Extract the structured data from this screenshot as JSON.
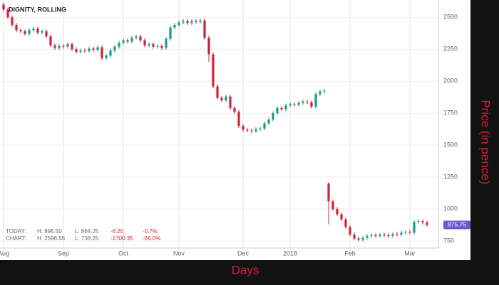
{
  "chart_data": {
    "type": "candlestick",
    "title": "DIGNITY, ROLLING",
    "x_label": "Days",
    "y_label": "Price (in pence)",
    "categories": [
      "Aug",
      null,
      null,
      null,
      null,
      null,
      null,
      null,
      null,
      null,
      null,
      null,
      null,
      null,
      "Sep",
      null,
      null,
      null,
      null,
      null,
      null,
      null,
      null,
      null,
      null,
      null,
      null,
      null,
      "Oct",
      null,
      null,
      null,
      null,
      null,
      null,
      null,
      null,
      null,
      null,
      null,
      null,
      "Nov",
      null,
      null,
      null,
      null,
      null,
      null,
      null,
      null,
      null,
      null,
      null,
      null,
      null,
      null,
      "Dec",
      null,
      null,
      null,
      null,
      null,
      null,
      null,
      null,
      null,
      null,
      "2018",
      null,
      null,
      null,
      null,
      null,
      null,
      null,
      null,
      null,
      null,
      null,
      null,
      null,
      "Feb",
      null,
      null,
      null,
      null,
      null,
      null,
      null,
      null,
      null,
      null,
      null,
      null,
      null,
      "Mar",
      null,
      null,
      null,
      null
    ],
    "series": [
      {
        "up_color": "#1a9a8a",
        "down_color": "#d0213b",
        "open": [
          2600,
          2560,
          2500,
          2440,
          2400,
          2390,
          2370,
          2400,
          2410,
          2380,
          2390,
          2350,
          2280,
          2260,
          2275,
          2270,
          2290,
          2250,
          2230,
          2240,
          2235,
          2255,
          2245,
          2265,
          2180,
          2200,
          2240,
          2270,
          2300,
          2320,
          2310,
          2340,
          2350,
          2320,
          2280,
          2290,
          2270,
          2275,
          2260,
          2330,
          2420,
          2440,
          2460,
          2470,
          2455,
          2470,
          2465,
          2475,
          2340,
          2210,
          1960,
          1870,
          1850,
          1880,
          1790,
          1760,
          1650,
          1620,
          1615,
          1610,
          1625,
          1630,
          1670,
          1700,
          1750,
          1790,
          1780,
          1810,
          1820,
          1815,
          1830,
          1840,
          1835,
          1800,
          1900,
          1920,
          1200,
          1060,
          1000,
          960,
          920,
          860,
          800,
          770,
          760,
          775,
          790,
          795,
          790,
          800,
          795,
          790,
          805,
          800,
          815,
          820,
          815,
          900,
          905,
          895
        ],
        "high": [
          2615,
          2575,
          2515,
          2455,
          2415,
          2405,
          2415,
          2425,
          2425,
          2405,
          2405,
          2365,
          2295,
          2290,
          2290,
          2305,
          2305,
          2265,
          2255,
          2255,
          2270,
          2270,
          2280,
          2280,
          2215,
          2255,
          2285,
          2315,
          2335,
          2335,
          2355,
          2365,
          2365,
          2335,
          2305,
          2305,
          2290,
          2290,
          2345,
          2435,
          2455,
          2475,
          2485,
          2485,
          2485,
          2485,
          2490,
          2490,
          2355,
          2225,
          1975,
          1885,
          1895,
          1895,
          1805,
          1775,
          1665,
          1635,
          1630,
          1640,
          1645,
          1685,
          1715,
          1765,
          1805,
          1805,
          1825,
          1835,
          1835,
          1845,
          1855,
          1855,
          1850,
          1915,
          1935,
          1940,
          1210,
          1075,
          1015,
          975,
          935,
          875,
          815,
          785,
          790,
          805,
          810,
          810,
          815,
          815,
          810,
          820,
          820,
          830,
          835,
          835,
          915,
          920,
          920,
          910
        ],
        "low": [
          2545,
          2485,
          2425,
          2385,
          2375,
          2355,
          2355,
          2385,
          2365,
          2365,
          2335,
          2265,
          2245,
          2245,
          2255,
          2255,
          2235,
          2215,
          2215,
          2220,
          2220,
          2230,
          2230,
          2165,
          2165,
          2185,
          2225,
          2255,
          2285,
          2295,
          2295,
          2325,
          2305,
          2265,
          2265,
          2255,
          2255,
          2245,
          2245,
          2315,
          2405,
          2425,
          2445,
          2440,
          2440,
          2450,
          2450,
          2325,
          2150,
          1945,
          1855,
          1835,
          1835,
          1775,
          1745,
          1635,
          1605,
          1600,
          1595,
          1595,
          1610,
          1615,
          1655,
          1685,
          1735,
          1765,
          1765,
          1795,
          1800,
          1800,
          1815,
          1820,
          1785,
          1785,
          1885,
          1905,
          880,
          985,
          945,
          905,
          845,
          785,
          755,
          745,
          745,
          760,
          775,
          775,
          775,
          780,
          775,
          775,
          785,
          785,
          800,
          800,
          800,
          885,
          880,
          861
        ],
        "close": [
          2560,
          2500,
          2440,
          2400,
          2390,
          2370,
          2400,
          2410,
          2380,
          2390,
          2350,
          2280,
          2260,
          2275,
          2270,
          2290,
          2250,
          2230,
          2240,
          2235,
          2255,
          2245,
          2265,
          2180,
          2200,
          2240,
          2270,
          2300,
          2320,
          2310,
          2340,
          2350,
          2320,
          2280,
          2290,
          2270,
          2275,
          2260,
          2330,
          2420,
          2440,
          2460,
          2470,
          2455,
          2470,
          2465,
          2475,
          2340,
          2210,
          1960,
          1870,
          1850,
          1880,
          1790,
          1760,
          1650,
          1620,
          1615,
          1610,
          1625,
          1630,
          1670,
          1700,
          1750,
          1790,
          1780,
          1810,
          1820,
          1815,
          1830,
          1840,
          1835,
          1800,
          1900,
          1920,
          1925,
          1060,
          1000,
          960,
          920,
          860,
          800,
          770,
          760,
          775,
          790,
          795,
          790,
          800,
          795,
          790,
          805,
          800,
          815,
          820,
          815,
          900,
          905,
          895,
          876
        ]
      }
    ],
    "ylim": [
      695,
      2635
    ],
    "yticks": [
      750,
      1000,
      1250,
      1500,
      1750,
      2000,
      2250,
      2500
    ],
    "grid": true,
    "last_price": 875.75,
    "last_price_color": "#6a5acd",
    "info": [
      {
        "label": "TODAY:",
        "high": "H: 896.50",
        "low": "L: 864.25",
        "change": "-6.25",
        "pct": "-0.7%"
      },
      {
        "label": "CHART:",
        "high": "H: 2596.55",
        "low": "L: 736.25",
        "change": "-1700.35",
        "pct": "-66.0%"
      }
    ]
  }
}
